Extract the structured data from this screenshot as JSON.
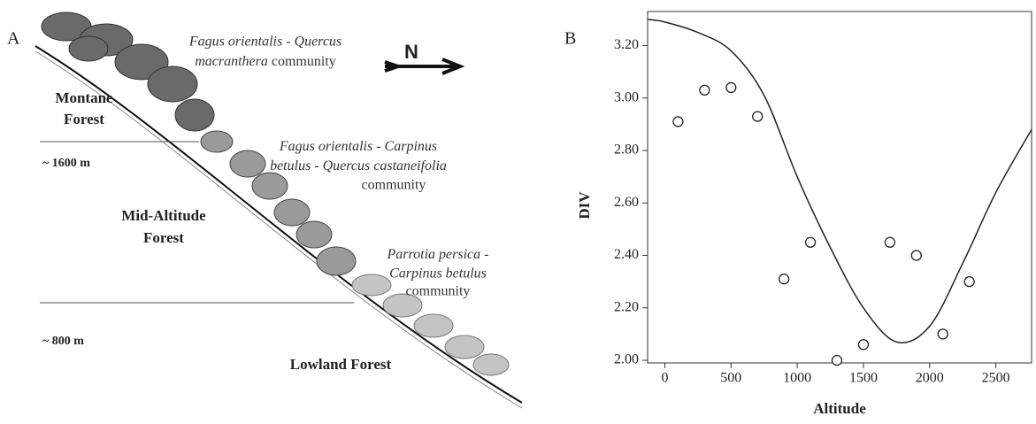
{
  "panel_a": {
    "label": "A",
    "north": "N",
    "zones": {
      "montane": [
        "Montane",
        "Forest"
      ],
      "mid": [
        "Mid-Altitude",
        "Forest"
      ],
      "lowland": "Lowland Forest"
    },
    "altitudes": [
      "~ 1600 m",
      "~ 800 m"
    ],
    "communities": [
      [
        "Fagus orientalis - Quercus",
        "macranthera",
        "community"
      ],
      [
        "Fagus orientalis",
        "- ",
        "Carpinus",
        "betulus",
        "- ",
        "Quercus castaneifolia",
        "community"
      ],
      [
        "Parrotia persica",
        "-",
        "Carpinus betulus",
        "community"
      ]
    ]
  },
  "chart_data": {
    "type": "scatter",
    "panel_label": "B",
    "xlabel": "Altitude",
    "ylabel": "DIV",
    "xlim": [
      -130,
      2770
    ],
    "ylim": [
      1.99,
      3.33
    ],
    "xticks": [
      0,
      500,
      1000,
      1500,
      2000,
      2500
    ],
    "yticks": [
      {
        "value": 2.0,
        "label": "2.00"
      },
      {
        "value": 2.2,
        "label": "2.20"
      },
      {
        "value": 2.4,
        "label": "2.40"
      },
      {
        "value": 2.6,
        "label": "2.60"
      },
      {
        "value": 2.8,
        "label": "2.80"
      },
      {
        "value": 3.0,
        "label": "3.00"
      },
      {
        "value": 3.2,
        "label": "3.20"
      }
    ],
    "series": [
      {
        "type": "scatter",
        "color": "#222",
        "x": [
          100,
          300,
          500,
          700,
          900,
          1100,
          1300,
          1500,
          1700,
          1900,
          2100,
          2300
        ],
        "values": [
          2.91,
          3.03,
          3.04,
          2.93,
          2.31,
          2.45,
          2.0,
          2.06,
          2.45,
          2.4,
          2.1,
          2.3
        ]
      },
      {
        "type": "line",
        "color": "#222",
        "x": [
          -130,
          0,
          250,
          500,
          750,
          1000,
          1250,
          1500,
          1750,
          2000,
          2250,
          2500,
          2770
        ],
        "values": [
          3.3,
          3.29,
          3.25,
          3.18,
          3.01,
          2.7,
          2.43,
          2.2,
          2.07,
          2.13,
          2.37,
          2.64,
          2.88
        ]
      }
    ]
  }
}
